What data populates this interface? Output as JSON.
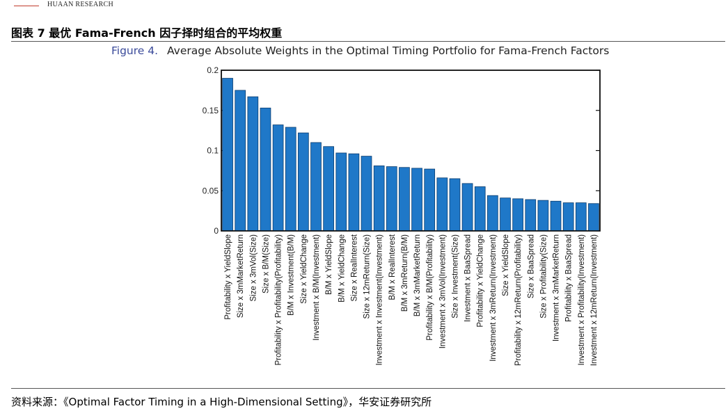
{
  "header": {
    "org_name": "HUAAN RESEARCH",
    "figure_title": "图表 7 最优 Fama-French 因子择时组合的平均权重"
  },
  "colors": {
    "bar": "#1f78c8",
    "bar_edge": "#0b3c6e",
    "chart_title": "#3a4a9a",
    "accent_red": "#c0392b"
  },
  "chart_data": {
    "type": "bar",
    "title_prefix": "Figure 4.",
    "title": "Average Absolute Weights in the Optimal Timing Portfolio for Fama-French Factors",
    "xlabel": "",
    "ylabel": "",
    "ylim": [
      0,
      0.2
    ],
    "yticks": [
      0,
      0.05,
      0.1,
      0.15,
      0.2
    ],
    "ytick_labels": [
      "0",
      "0.05",
      "0.1",
      "0.15",
      "0.2"
    ],
    "categories": [
      "Profitability x YieldSlope",
      "Size x 3mMarketReturn",
      "Size x 3mVol(Size)",
      "Size x B/M(Size)",
      "Profitability x Profitability(Profitability)",
      "B/M x Investment(B/M)",
      "Size x YieldChange",
      "Investment x B/M(Investment)",
      "B/M x YieldSlope",
      "B/M x YieldChange",
      "Size x RealInterest",
      "Size x 12mReturn(Size)",
      "Investment x Investment(Investment)",
      "B/M x RealInterest",
      "B/M x 3mReturn(B/M)",
      "B/M x 3mMarketReturn",
      "Profitability x B/M(Profitability)",
      "Investment x 3mVol(Investment)",
      "Size x Investment(Size)",
      "Investment x BaaSpread",
      "Profitability x YieldChange",
      "Investment x 3mReturn(Investment)",
      "Size x YieldSlope",
      "Profitability x 12mReturn(Profitability)",
      "Size x BaaSpread",
      "Size x Profitability(Size)",
      "Investment x 3mMarketReturn",
      "Profitability x BaaSpread",
      "Investment x Profitability(Investment)",
      "Investment x 12mReturn(Investment)"
    ],
    "values": [
      0.19,
      0.175,
      0.167,
      0.153,
      0.132,
      0.129,
      0.122,
      0.11,
      0.105,
      0.097,
      0.096,
      0.093,
      0.081,
      0.08,
      0.079,
      0.078,
      0.077,
      0.066,
      0.065,
      0.059,
      0.055,
      0.044,
      0.041,
      0.04,
      0.039,
      0.038,
      0.037,
      0.035,
      0.035,
      0.034
    ]
  },
  "footer": {
    "source_label": "资料来源：",
    "source_text": "《Optimal Factor Timing in a High-Dimensional Setting》，华安证券研究所"
  }
}
